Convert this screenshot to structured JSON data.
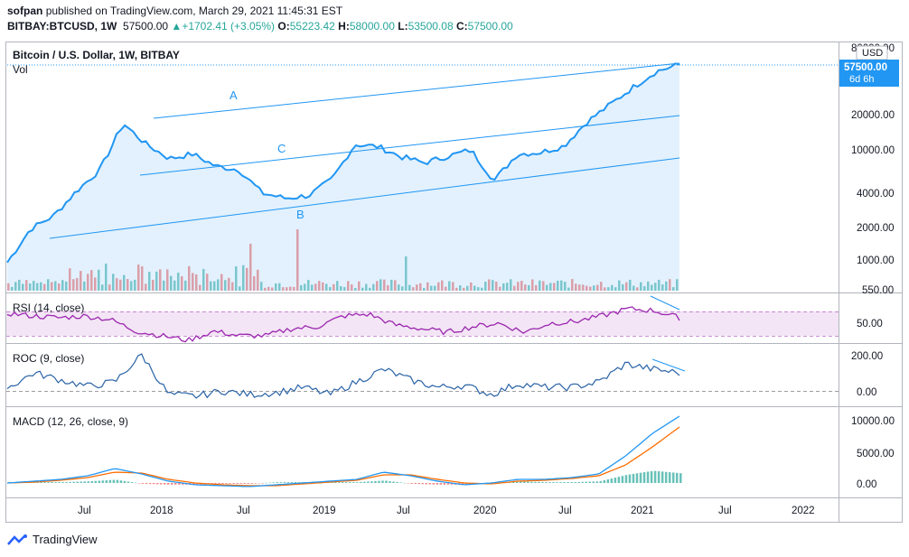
{
  "header": {
    "author": "sofpan",
    "published": "published on TradingView.com, March 29, 2021 11:45:31 EST",
    "symbol": "BITBAY:BTCUSD, 1W",
    "last": "57500.00",
    "change": "+1702.41 (+3.05%)",
    "o_label": "O:",
    "o_val": "55223.42",
    "h_label": "H:",
    "h_val": "58000.00",
    "l_label": "L:",
    "l_val": "53500.08",
    "c_label": "C:",
    "c_val": "57500.00"
  },
  "main_pane": {
    "title": "Bitcoin / U.S. Dollar, 1W, BITBAY",
    "vol_label": "Vol",
    "currency": "USD",
    "price_tag": "57500.00",
    "countdown": "6d 6h",
    "y_ticks": [
      "80000.00",
      "20000.00",
      "10000.00",
      "4000.00",
      "2000.00",
      "1000.00",
      "550.00"
    ],
    "annotations": [
      "A",
      "B",
      "C"
    ]
  },
  "rsi_pane": {
    "title": "RSI (14, close)",
    "y_ticks": [
      "50.00"
    ]
  },
  "roc_pane": {
    "title": "ROC (9, close)",
    "y_ticks": [
      "200.00",
      "0.00"
    ]
  },
  "macd_pane": {
    "title": "MACD (12, 26, close, 9)",
    "y_ticks": [
      "10000.00",
      "5000.00",
      "0.00"
    ]
  },
  "x_axis": {
    "labels": [
      "Jul",
      "2018",
      "Jul",
      "2019",
      "Jul",
      "2020",
      "Jul",
      "2021",
      "Jul",
      "2022"
    ]
  },
  "footer": {
    "brand": "TradingView"
  },
  "colors": {
    "line": "#2196f3",
    "up": "#26a69a",
    "down": "#ef5350",
    "signal": "#ff6d00",
    "rsi_band": "#f3e5f5",
    "rsi_line": "#9c27b0"
  },
  "chart_data": {
    "type": "line",
    "title": "Bitcoin / U.S. Dollar, 1W, BITBAY",
    "scale": "log",
    "x": [
      "2017-03",
      "2017-05",
      "2017-07",
      "2017-09",
      "2017-11",
      "2017-12",
      "2018-01",
      "2018-03",
      "2018-05",
      "2018-07",
      "2018-09",
      "2018-11",
      "2018-12",
      "2019-02",
      "2019-04",
      "2019-06",
      "2019-07",
      "2019-09",
      "2019-11",
      "2020-01",
      "2020-02",
      "2020-03",
      "2020-05",
      "2020-07",
      "2020-09",
      "2020-11",
      "2020-12",
      "2021-01",
      "2021-02",
      "2021-03"
    ],
    "close": [
      950,
      1900,
      2500,
      4200,
      6500,
      17000,
      11000,
      8200,
      9000,
      7000,
      6500,
      4000,
      3600,
      3800,
      5300,
      11000,
      10500,
      8500,
      7500,
      8600,
      9800,
      5200,
      9000,
      9300,
      10600,
      17500,
      25000,
      36000,
      50000,
      57500
    ],
    "ylim": [
      550,
      80000
    ]
  }
}
